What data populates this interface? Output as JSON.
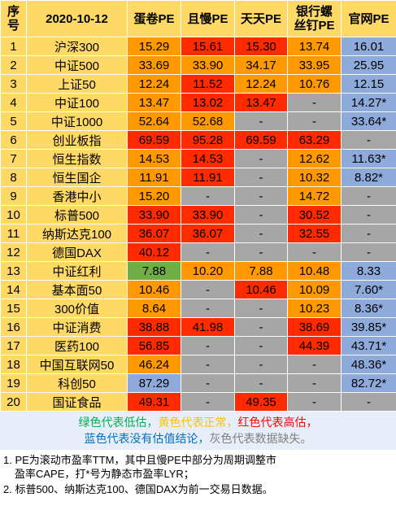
{
  "header": {
    "no": "序号",
    "date": "2020-10-12",
    "danjuan": "蛋卷PE",
    "qiemam": "且慢PE",
    "tiantian": "天天PE",
    "yinhang": "银行螺丝钉PE",
    "guanwang": "官网PE"
  },
  "rows": [
    {
      "no": "1",
      "name": "沪深300",
      "dj": "15.29",
      "qm": "15.61",
      "tt": "15.30",
      "yh": "13.74",
      "gw": "16.01",
      "c": [
        "yellow",
        "red",
        "red",
        "yellow",
        "blue"
      ]
    },
    {
      "no": "2",
      "name": "中证500",
      "dj": "33.69",
      "qm": "33.90",
      "tt": "34.17",
      "yh": "33.95",
      "gw": "25.95",
      "c": [
        "yellow",
        "yellow",
        "yellow",
        "yellow",
        "blue"
      ]
    },
    {
      "no": "3",
      "name": "上证50",
      "dj": "12.24",
      "qm": "11.52",
      "tt": "12.24",
      "yh": "10.76",
      "gw": "12.15",
      "c": [
        "yellow",
        "red",
        "yellow",
        "yellow",
        "blue"
      ]
    },
    {
      "no": "4",
      "name": "中证100",
      "dj": "13.47",
      "qm": "13.02",
      "tt": "13.47",
      "yh": "-",
      "gw": "14.27*",
      "c": [
        "yellow",
        "red",
        "red",
        "gray",
        "blue"
      ]
    },
    {
      "no": "5",
      "name": "中证1000",
      "dj": "52.64",
      "qm": "52.68",
      "tt": "-",
      "yh": "-",
      "gw": "33.64*",
      "c": [
        "yellow",
        "yellow",
        "gray",
        "gray",
        "blue"
      ]
    },
    {
      "no": "6",
      "name": "创业板指",
      "dj": "69.59",
      "qm": "95.28",
      "tt": "69.59",
      "yh": "63.29",
      "gw": "-",
      "c": [
        "red",
        "red",
        "red",
        "red",
        "gray"
      ]
    },
    {
      "no": "7",
      "name": "恒生指数",
      "dj": "14.53",
      "qm": "14.53",
      "tt": "-",
      "yh": "12.62",
      "gw": "11.63*",
      "c": [
        "yellow",
        "red",
        "gray",
        "yellow",
        "blue"
      ]
    },
    {
      "no": "8",
      "name": "恒生国企",
      "dj": "11.91",
      "qm": "11.91",
      "tt": "-",
      "yh": "10.32",
      "gw": "8.82*",
      "c": [
        "yellow",
        "red",
        "gray",
        "yellow",
        "blue"
      ]
    },
    {
      "no": "9",
      "name": "香港中小",
      "dj": "15.20",
      "qm": "-",
      "tt": "-",
      "yh": "14.72",
      "gw": "-",
      "c": [
        "yellow",
        "gray",
        "gray",
        "yellow",
        "gray"
      ]
    },
    {
      "no": "10",
      "name": "标普500",
      "dj": "33.90",
      "qm": "33.90",
      "tt": "-",
      "yh": "30.52",
      "gw": "-",
      "c": [
        "red",
        "red",
        "gray",
        "red",
        "gray"
      ]
    },
    {
      "no": "11",
      "name": "纳斯达克100",
      "dj": "36.07",
      "qm": "36.07",
      "tt": "-",
      "yh": "32.55",
      "gw": "-",
      "c": [
        "red",
        "red",
        "gray",
        "red",
        "gray"
      ]
    },
    {
      "no": "12",
      "name": "德国DAX",
      "dj": "40.12",
      "qm": "-",
      "tt": "-",
      "yh": "-",
      "gw": "-",
      "c": [
        "red",
        "gray",
        "gray",
        "gray",
        "gray"
      ]
    },
    {
      "no": "13",
      "name": "中证红利",
      "dj": "7.88",
      "qm": "10.20",
      "tt": "7.88",
      "yh": "10.48",
      "gw": "8.33",
      "c": [
        "green",
        "yellow",
        "yellow",
        "yellow",
        "blue"
      ]
    },
    {
      "no": "14",
      "name": "基本面50",
      "dj": "10.46",
      "qm": "-",
      "tt": "10.46",
      "yh": "10.09",
      "gw": "7.60*",
      "c": [
        "yellow",
        "gray",
        "red",
        "yellow",
        "blue"
      ]
    },
    {
      "no": "15",
      "name": "300价值",
      "dj": "8.64",
      "qm": "-",
      "tt": "-",
      "yh": "10.23",
      "gw": "8.36*",
      "c": [
        "yellow",
        "gray",
        "gray",
        "yellow",
        "blue"
      ]
    },
    {
      "no": "16",
      "name": "中证消费",
      "dj": "38.88",
      "qm": "41.98",
      "tt": "-",
      "yh": "38.69",
      "gw": "39.85*",
      "c": [
        "red",
        "red",
        "gray",
        "red",
        "blue"
      ]
    },
    {
      "no": "17",
      "name": "医药100",
      "dj": "56.85",
      "qm": "-",
      "tt": "-",
      "yh": "44.39",
      "gw": "43.71*",
      "c": [
        "red",
        "gray",
        "gray",
        "red",
        "blue"
      ]
    },
    {
      "no": "18",
      "name": "中国互联网50",
      "dj": "46.24",
      "qm": "-",
      "tt": "-",
      "yh": "-",
      "gw": "48.36*",
      "c": [
        "yellow",
        "gray",
        "gray",
        "gray",
        "blue"
      ]
    },
    {
      "no": "19",
      "name": "科创50",
      "dj": "87.29",
      "qm": "-",
      "tt": "-",
      "yh": "-",
      "gw": "82.72*",
      "c": [
        "blue",
        "gray",
        "gray",
        "gray",
        "blue"
      ]
    },
    {
      "no": "20",
      "name": "国证食品",
      "dj": "49.31",
      "qm": "-",
      "tt": "49.35",
      "yh": "-",
      "gw": "-",
      "c": [
        "red",
        "gray",
        "red",
        "gray",
        "gray"
      ]
    }
  ],
  "legend": {
    "green": "绿色代表低估，",
    "yellow": "黄色代表正常，",
    "red": "红色代表高估，",
    "blue": "蓝色代表没有估值结论，",
    "gray": "灰色代表数据缺失。"
  },
  "footnotes": {
    "n1a": "1. PE为滚动市盈率TTM，其中且慢PE中部分为周期调整市",
    "n1b": "盈率CAPE，打*号为静态市盈率LYR；",
    "n2": "2. 标普500、纳斯达克100、德国DAX为前一交易日数据。"
  },
  "colors": {
    "header_bg": "#ffd966",
    "green": "#70ad47",
    "yellow": "#ff9900",
    "red": "#ff2a00",
    "blue": "#8eaadb",
    "gray": "#a6a6a6"
  }
}
